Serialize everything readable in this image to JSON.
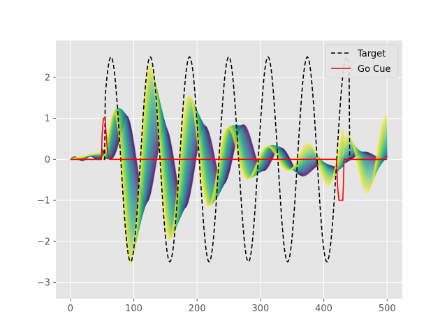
{
  "chart_data": {
    "type": "line",
    "title": "",
    "xlabel": "",
    "ylabel": "",
    "xlim": [
      -23,
      524
    ],
    "ylim": [
      -3.4,
      2.9
    ],
    "grid": true,
    "background": "#e5e5e5",
    "legend_position": "top-right",
    "x_ticks": [
      0,
      100,
      200,
      300,
      400,
      500
    ],
    "x_tick_labels": [
      "0",
      "100",
      "200",
      "300",
      "400",
      "500"
    ],
    "y_ticks": [
      2,
      1,
      0,
      -1,
      -2,
      -3
    ],
    "y_tick_labels": [
      "2",
      "1",
      "0",
      "−1",
      "−2",
      "−3"
    ],
    "legend": [
      {
        "label": "Target",
        "color": "#000000",
        "style": "dashed"
      },
      {
        "label": "Go Cue",
        "color": "#ff0000",
        "style": "solid"
      }
    ],
    "target": {
      "start": 55,
      "end": 440,
      "amplitude": 2.5,
      "period": 62,
      "peaks": [
        64,
        126,
        189,
        252,
        316,
        380
      ],
      "troughs": [
        95,
        158,
        221,
        284,
        348,
        411
      ]
    },
    "go_cue": {
      "color": "#ff0000",
      "x": [
        0,
        49,
        50,
        52,
        55,
        56,
        58,
        60,
        62,
        420,
        422,
        424,
        425,
        430,
        431,
        432,
        500
      ],
      "y": [
        0,
        0,
        0.6,
        1.0,
        1.0,
        0.7,
        0.3,
        0.05,
        0,
        0,
        -0.7,
        -1.0,
        -1.0,
        -1.0,
        -0.6,
        0,
        0
      ]
    },
    "trajectories": {
      "count": 50,
      "colormap": "viridis",
      "description": "Family of model output curves, colored from dark purple (early) to yellow (late), oscillating between about -3.2 and 2.65"
    }
  }
}
